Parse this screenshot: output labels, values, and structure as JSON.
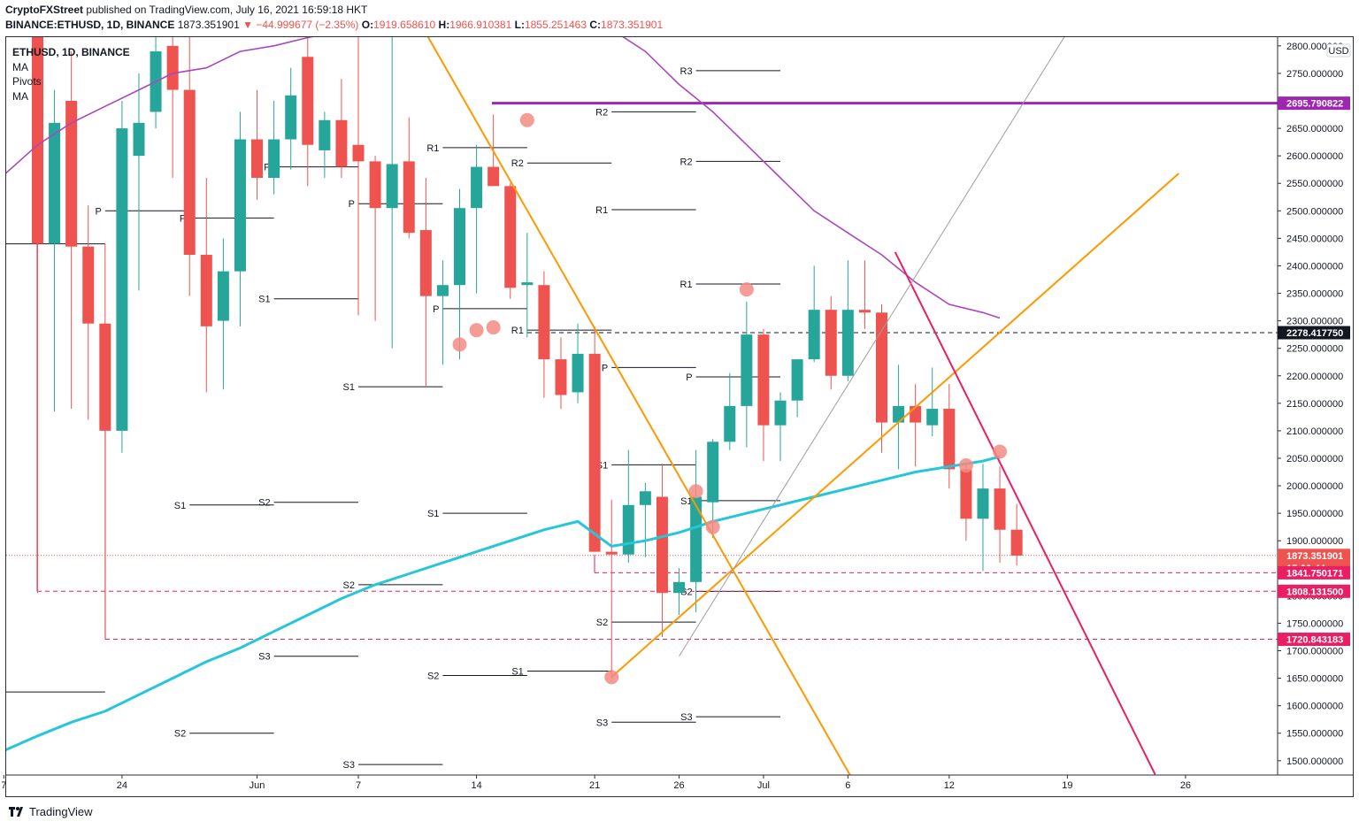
{
  "header": {
    "publisher_name": "CryptoFXStreet",
    "publisher_rest": " published on TradingView.com, July 16, 2021 16:59:18 HKT",
    "symbol": "BINANCE:ETHUSD, 1D, BINANCE",
    "last_price": "1873.351901",
    "change": "▼ −44.999677 (−2.35%)",
    "open_label": "O:",
    "open": "1919.658610",
    "high_label": "H:",
    "high": "1966.910381",
    "low_label": "L:",
    "low": "1855.251463",
    "close_label": "C:",
    "close": "1873.351901"
  },
  "legend": {
    "symbol": "ETHUSD, 1D, BINANCE",
    "items": [
      "MA",
      "Pivots",
      "MA"
    ]
  },
  "footer": {
    "brand": "TradingView"
  },
  "colors": {
    "up": "#26a69a",
    "down": "#ef5350",
    "ma_purple": "#ab47bc",
    "ma_cyan": "#26c6da",
    "trend_orange": "#ff9800",
    "trend_pink": "#e91e63",
    "gray_line": "#9e9e9e",
    "level_purple": "#9c27b0",
    "level_red": "#e91e63",
    "marker": "#f28b82"
  },
  "chart_data": {
    "type": "candlestick",
    "symbol": "ETHUSD",
    "timeframe": "1D",
    "ylabel": "USD",
    "y_range": [
      1470,
      2830
    ],
    "y_ticks": [
      "1500.000000",
      "1550.000000",
      "1600.000000",
      "1650.000000",
      "1700.000000",
      "1750.000000",
      "1800.000000",
      "1850.000000",
      "1900.000000",
      "1950.000000",
      "2000.000000",
      "2050.000000",
      "2100.000000",
      "2150.000000",
      "2200.000000",
      "2250.000000",
      "2300.000000",
      "2350.000000",
      "2400.000000",
      "2450.000000",
      "2500.000000",
      "2550.000000",
      "2600.000000",
      "2650.000000",
      "2700.000000",
      "2750.000000",
      "2800.000000"
    ],
    "x_ticks": [
      {
        "day": -2,
        "label": "7"
      },
      {
        "day": 5,
        "label": "24"
      },
      {
        "day": 13,
        "label": "Jun"
      },
      {
        "day": 19,
        "label": "7"
      },
      {
        "day": 26,
        "label": "14"
      },
      {
        "day": 33,
        "label": "21"
      },
      {
        "day": 38,
        "label": "26"
      },
      {
        "day": 43,
        "label": "Jul"
      },
      {
        "day": 48,
        "label": "6"
      },
      {
        "day": 54,
        "label": "12"
      },
      {
        "day": 61,
        "label": "19"
      },
      {
        "day": 68,
        "label": "26"
      }
    ],
    "candles": [
      {
        "day": 0,
        "o": 2865,
        "h": 2880,
        "l": 1805,
        "c": 2440
      },
      {
        "day": 1,
        "o": 2440,
        "h": 2720,
        "l": 2135,
        "c": 2660
      },
      {
        "day": 2,
        "o": 2700,
        "h": 2790,
        "l": 2140,
        "c": 2435
      },
      {
        "day": 3,
        "o": 2435,
        "h": 2510,
        "l": 2120,
        "c": 2295
      },
      {
        "day": 4,
        "o": 2295,
        "h": 2440,
        "l": 1728,
        "c": 2100
      },
      {
        "day": 5,
        "o": 2100,
        "h": 2700,
        "l": 2060,
        "c": 2650
      },
      {
        "day": 6,
        "o": 2600,
        "h": 2750,
        "l": 2355,
        "c": 2660
      },
      {
        "day": 7,
        "o": 2680,
        "h": 2860,
        "l": 2650,
        "c": 2790
      },
      {
        "day": 8,
        "o": 2800,
        "h": 2870,
        "l": 2560,
        "c": 2720
      },
      {
        "day": 9,
        "o": 2720,
        "h": 2870,
        "l": 2345,
        "c": 2420
      },
      {
        "day": 10,
        "o": 2420,
        "h": 2560,
        "l": 2170,
        "c": 2290
      },
      {
        "day": 11,
        "o": 2300,
        "h": 2450,
        "l": 2175,
        "c": 2390
      },
      {
        "day": 12,
        "o": 2390,
        "h": 2680,
        "l": 2290,
        "c": 2630
      },
      {
        "day": 13,
        "o": 2630,
        "h": 2720,
        "l": 2520,
        "c": 2560
      },
      {
        "day": 14,
        "o": 2560,
        "h": 2700,
        "l": 2530,
        "c": 2630
      },
      {
        "day": 15,
        "o": 2630,
        "h": 2760,
        "l": 2575,
        "c": 2710
      },
      {
        "day": 16,
        "o": 2780,
        "h": 2850,
        "l": 2545,
        "c": 2620
      },
      {
        "day": 17,
        "o": 2610,
        "h": 2680,
        "l": 2560,
        "c": 2665
      },
      {
        "day": 18,
        "o": 2665,
        "h": 2740,
        "l": 2560,
        "c": 2580
      },
      {
        "day": 19,
        "o": 2620,
        "h": 2840,
        "l": 2310,
        "c": 2590
      },
      {
        "day": 20,
        "o": 2590,
        "h": 2600,
        "l": 2300,
        "c": 2505
      },
      {
        "day": 21,
        "o": 2505,
        "h": 2840,
        "l": 2250,
        "c": 2585
      },
      {
        "day": 22,
        "o": 2590,
        "h": 2670,
        "l": 2450,
        "c": 2460
      },
      {
        "day": 23,
        "o": 2465,
        "h": 2560,
        "l": 2180,
        "c": 2345
      },
      {
        "day": 24,
        "o": 2345,
        "h": 2410,
        "l": 2220,
        "c": 2365
      },
      {
        "day": 25,
        "o": 2365,
        "h": 2540,
        "l": 2230,
        "c": 2505
      },
      {
        "day": 26,
        "o": 2505,
        "h": 2620,
        "l": 2350,
        "c": 2580
      },
      {
        "day": 27,
        "o": 2580,
        "h": 2675,
        "l": 2545,
        "c": 2545
      },
      {
        "day": 28,
        "o": 2545,
        "h": 2550,
        "l": 2340,
        "c": 2360
      },
      {
        "day": 29,
        "o": 2365,
        "h": 2460,
        "l": 2270,
        "c": 2370
      },
      {
        "day": 30,
        "o": 2365,
        "h": 2390,
        "l": 2160,
        "c": 2230
      },
      {
        "day": 31,
        "o": 2230,
        "h": 2270,
        "l": 2140,
        "c": 2165
      },
      {
        "day": 32,
        "o": 2170,
        "h": 2295,
        "l": 2150,
        "c": 2240
      },
      {
        "day": 33,
        "o": 2240,
        "h": 2290,
        "l": 1880,
        "c": 1880
      },
      {
        "day": 34,
        "o": 1880,
        "h": 1975,
        "l": 1650,
        "c": 1875
      },
      {
        "day": 35,
        "o": 1875,
        "h": 2065,
        "l": 1860,
        "c": 1965
      },
      {
        "day": 36,
        "o": 1965,
        "h": 2005,
        "l": 1870,
        "c": 1990
      },
      {
        "day": 37,
        "o": 1980,
        "h": 2040,
        "l": 1725,
        "c": 1805
      },
      {
        "day": 38,
        "o": 1805,
        "h": 1850,
        "l": 1765,
        "c": 1825
      },
      {
        "day": 39,
        "o": 1825,
        "h": 2065,
        "l": 1770,
        "c": 1980
      },
      {
        "day": 40,
        "o": 1970,
        "h": 2085,
        "l": 1905,
        "c": 2080
      },
      {
        "day": 41,
        "o": 2080,
        "h": 2205,
        "l": 2065,
        "c": 2145
      },
      {
        "day": 42,
        "o": 2145,
        "h": 2335,
        "l": 2070,
        "c": 2275
      },
      {
        "day": 43,
        "o": 2275,
        "h": 2285,
        "l": 2045,
        "c": 2110
      },
      {
        "day": 44,
        "o": 2110,
        "h": 2170,
        "l": 2045,
        "c": 2155
      },
      {
        "day": 45,
        "o": 2155,
        "h": 2225,
        "l": 2125,
        "c": 2230
      },
      {
        "day": 46,
        "o": 2230,
        "h": 2400,
        "l": 2225,
        "c": 2320
      },
      {
        "day": 47,
        "o": 2320,
        "h": 2345,
        "l": 2175,
        "c": 2200
      },
      {
        "day": 48,
        "o": 2200,
        "h": 2410,
        "l": 2190,
        "c": 2320
      },
      {
        "day": 49,
        "o": 2320,
        "h": 2410,
        "l": 2285,
        "c": 2315
      },
      {
        "day": 50,
        "o": 2315,
        "h": 2330,
        "l": 2060,
        "c": 2115
      },
      {
        "day": 51,
        "o": 2115,
        "h": 2220,
        "l": 2030,
        "c": 2145
      },
      {
        "day": 52,
        "o": 2145,
        "h": 2185,
        "l": 2035,
        "c": 2115
      },
      {
        "day": 53,
        "o": 2110,
        "h": 2215,
        "l": 2090,
        "c": 2140
      },
      {
        "day": 54,
        "o": 2140,
        "h": 2185,
        "l": 1995,
        "c": 2030
      },
      {
        "day": 55,
        "o": 2030,
        "h": 2040,
        "l": 1900,
        "c": 1940
      },
      {
        "day": 56,
        "o": 1940,
        "h": 2040,
        "l": 1845,
        "c": 1995
      },
      {
        "day": 57,
        "o": 1995,
        "h": 2035,
        "l": 1860,
        "c": 1920
      },
      {
        "day": 58,
        "o": 1920,
        "h": 1967,
        "l": 1855,
        "c": 1873
      }
    ],
    "moving_averages": [
      {
        "name": "MA",
        "color": "#ab47bc",
        "points": [
          [
            -2,
            2565
          ],
          [
            0,
            2620
          ],
          [
            2,
            2660
          ],
          [
            4,
            2690
          ],
          [
            6,
            2720
          ],
          [
            8,
            2750
          ],
          [
            10,
            2760
          ],
          [
            12,
            2790
          ],
          [
            14,
            2800
          ],
          [
            16,
            2815
          ],
          [
            20,
            2840
          ],
          [
            28,
            2860
          ],
          [
            32,
            2850
          ],
          [
            34,
            2830
          ],
          [
            36,
            2790
          ],
          [
            38,
            2730
          ],
          [
            40,
            2680
          ],
          [
            42,
            2620
          ],
          [
            44,
            2560
          ],
          [
            46,
            2500
          ],
          [
            48,
            2460
          ],
          [
            50,
            2420
          ],
          [
            52,
            2370
          ],
          [
            54,
            2330
          ],
          [
            56,
            2315
          ],
          [
            57,
            2305
          ]
        ]
      },
      {
        "name": "MA",
        "color": "#26c6da",
        "points": [
          [
            -2,
            1518
          ],
          [
            0,
            1545
          ],
          [
            2,
            1570
          ],
          [
            4,
            1590
          ],
          [
            6,
            1620
          ],
          [
            8,
            1650
          ],
          [
            10,
            1680
          ],
          [
            12,
            1705
          ],
          [
            14,
            1735
          ],
          [
            16,
            1765
          ],
          [
            18,
            1795
          ],
          [
            20,
            1820
          ],
          [
            22,
            1840
          ],
          [
            24,
            1860
          ],
          [
            26,
            1880
          ],
          [
            28,
            1900
          ],
          [
            30,
            1920
          ],
          [
            32,
            1935
          ],
          [
            34,
            1890
          ],
          [
            36,
            1900
          ],
          [
            38,
            1915
          ],
          [
            40,
            1935
          ],
          [
            42,
            1950
          ],
          [
            44,
            1965
          ],
          [
            46,
            1980
          ],
          [
            48,
            1995
          ],
          [
            50,
            2010
          ],
          [
            52,
            2025
          ],
          [
            54,
            2035
          ],
          [
            56,
            2045
          ],
          [
            57,
            2053
          ]
        ]
      }
    ],
    "trend_lines": [
      {
        "color": "#ff9800",
        "from": [
          22.5,
          2850
        ],
        "to": [
          48.2,
          1470
        ]
      },
      {
        "color": "#ff9800",
        "from": [
          34,
          1652
        ],
        "to": [
          67.6,
          2568
        ]
      },
      {
        "color": "#e91e63",
        "from": [
          50.8,
          2425
        ],
        "to": [
          66.2,
          1475
        ]
      },
      {
        "color": "#9e9e9e",
        "from": [
          38,
          1690
        ],
        "to": [
          61,
          2825
        ]
      }
    ],
    "price_levels": [
      {
        "value": "2695.790822",
        "color": "#9c27b0",
        "style": "solid"
      },
      {
        "value": "2278.417750",
        "color": "#131722",
        "style": "dashed"
      },
      {
        "value": "1873.351901",
        "sub": "15:00:44",
        "color": "#ef5350",
        "style": "dotted"
      },
      {
        "value": "1841.750171",
        "color": "#e91e63",
        "style": "dashed"
      },
      {
        "value": "1808.131500",
        "color": "#e91e63",
        "style": "dashed"
      },
      {
        "value": "1720.843183",
        "color": "#e91e63",
        "style": "dashed"
      }
    ],
    "pivot_levels": [
      {
        "label": "",
        "from": -2,
        "to": 4,
        "value": 2440
      },
      {
        "label": "",
        "from": -2,
        "to": 4,
        "value": 1625
      },
      {
        "label": "P",
        "from": 4,
        "to": 9,
        "value": 2500
      },
      {
        "label": "S1",
        "from": 9,
        "to": 14,
        "value": 1965
      },
      {
        "label": "S2",
        "from": 9,
        "to": 14,
        "value": 1550
      },
      {
        "label": "P",
        "from": 9,
        "to": 14,
        "value": 2487
      },
      {
        "label": "P",
        "from": 14,
        "to": 19,
        "value": 2580
      },
      {
        "label": "S1",
        "from": 14,
        "to": 19,
        "value": 2340
      },
      {
        "label": "S2",
        "from": 14,
        "to": 19,
        "value": 1970
      },
      {
        "label": "S3",
        "from": 14,
        "to": 19,
        "value": 1690
      },
      {
        "label": "P",
        "from": 19,
        "to": 24,
        "value": 2513
      },
      {
        "label": "S1",
        "from": 19,
        "to": 24,
        "value": 2180
      },
      {
        "label": "S2",
        "from": 19,
        "to": 24,
        "value": 1820
      },
      {
        "label": "S3",
        "from": 19,
        "to": 24,
        "value": 1493
      },
      {
        "label": "R1",
        "from": 24,
        "to": 29,
        "value": 2615
      },
      {
        "label": "P",
        "from": 24,
        "to": 29,
        "value": 2322
      },
      {
        "label": "S1",
        "from": 24,
        "to": 29,
        "value": 1950
      },
      {
        "label": "S2",
        "from": 24,
        "to": 29,
        "value": 1655
      },
      {
        "label": "R2",
        "from": 29,
        "to": 34,
        "value": 2587
      },
      {
        "label": "R1",
        "from": 29,
        "to": 34,
        "value": 2283
      },
      {
        "label": "S1",
        "from": 29,
        "to": 34,
        "value": 1663
      },
      {
        "label": "R2",
        "from": 34,
        "to": 39,
        "value": 2680
      },
      {
        "label": "R1",
        "from": 34,
        "to": 39,
        "value": 2502
      },
      {
        "label": "P",
        "from": 34,
        "to": 39,
        "value": 2215
      },
      {
        "label": "S1",
        "from": 34,
        "to": 39,
        "value": 2038
      },
      {
        "label": "S2",
        "from": 34,
        "to": 39,
        "value": 1752
      },
      {
        "label": "S3",
        "from": 34,
        "to": 39,
        "value": 1570
      },
      {
        "label": "R3",
        "from": 39,
        "to": 44,
        "value": 2755
      },
      {
        "label": "R2",
        "from": 39,
        "to": 44,
        "value": 2590
      },
      {
        "label": "R1",
        "from": 39,
        "to": 44,
        "value": 2367
      },
      {
        "label": "P",
        "from": 39,
        "to": 44,
        "value": 2198
      },
      {
        "label": "S1",
        "from": 39,
        "to": 44,
        "value": 1973
      },
      {
        "label": "S2",
        "from": 39,
        "to": 44,
        "value": 1808
      },
      {
        "label": "S3",
        "from": 39,
        "to": 44,
        "value": 1580
      }
    ],
    "markers": [
      {
        "day": 34,
        "value": 1652
      },
      {
        "day": 25,
        "value": 2257
      },
      {
        "day": 26,
        "value": 2283
      },
      {
        "day": 27,
        "value": 2288
      },
      {
        "day": 29,
        "value": 2665
      },
      {
        "day": 39,
        "value": 1990
      },
      {
        "day": 40,
        "value": 1925
      },
      {
        "day": 42,
        "value": 2357
      },
      {
        "day": 55,
        "value": 2037
      },
      {
        "day": 57,
        "value": 2062
      }
    ]
  }
}
